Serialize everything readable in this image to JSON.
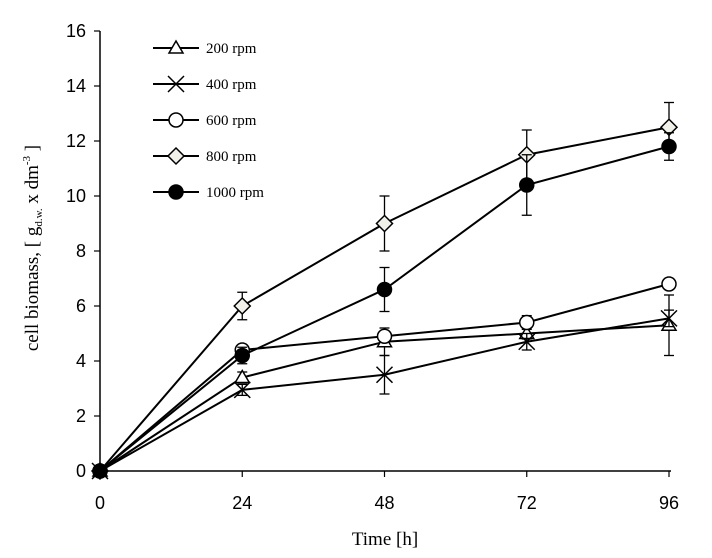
{
  "chart_data": {
    "type": "line",
    "title": "",
    "xlabel": "Time [h]",
    "ylabel": {
      "prefix": "cell biomass, [ g",
      "subscript": "d.w.",
      "middle": " x dm",
      "superscript": "-3",
      "suffix": " ]"
    },
    "x": [
      0,
      24,
      48,
      72,
      96
    ],
    "xticks": [
      "0",
      "24",
      "48",
      "72",
      "96"
    ],
    "ylim": [
      0,
      16
    ],
    "yticks": [
      "0",
      "2",
      "4",
      "6",
      "8",
      "10",
      "12",
      "14",
      "16"
    ],
    "legend_position": "top-left",
    "series": [
      {
        "name": "200 rpm",
        "marker": "triangle",
        "values": [
          0,
          3.4,
          4.7,
          5.0,
          5.3
        ],
        "errors": [
          0,
          0.2,
          0.5,
          0.2,
          1.1
        ]
      },
      {
        "name": "400 rpm",
        "marker": "x",
        "values": [
          0,
          2.95,
          3.5,
          4.7,
          5.55
        ],
        "errors": [
          0,
          0.2,
          0.7,
          0.3,
          0.3
        ]
      },
      {
        "name": "600 rpm",
        "marker": "circle-open",
        "values": [
          0,
          4.4,
          4.9,
          5.4,
          6.8
        ],
        "errors": [
          0,
          0.1,
          0.15,
          0.25,
          0.1
        ]
      },
      {
        "name": "800 rpm",
        "marker": "diamond",
        "values": [
          0,
          6.0,
          9.0,
          11.5,
          12.5
        ],
        "errors": [
          0,
          0.5,
          1.0,
          0.9,
          0.9
        ]
      },
      {
        "name": "1000 rpm",
        "marker": "circle-filled",
        "values": [
          0,
          4.2,
          6.6,
          10.4,
          11.8
        ],
        "errors": [
          0,
          0.3,
          0.8,
          1.1,
          0.5
        ]
      }
    ]
  }
}
